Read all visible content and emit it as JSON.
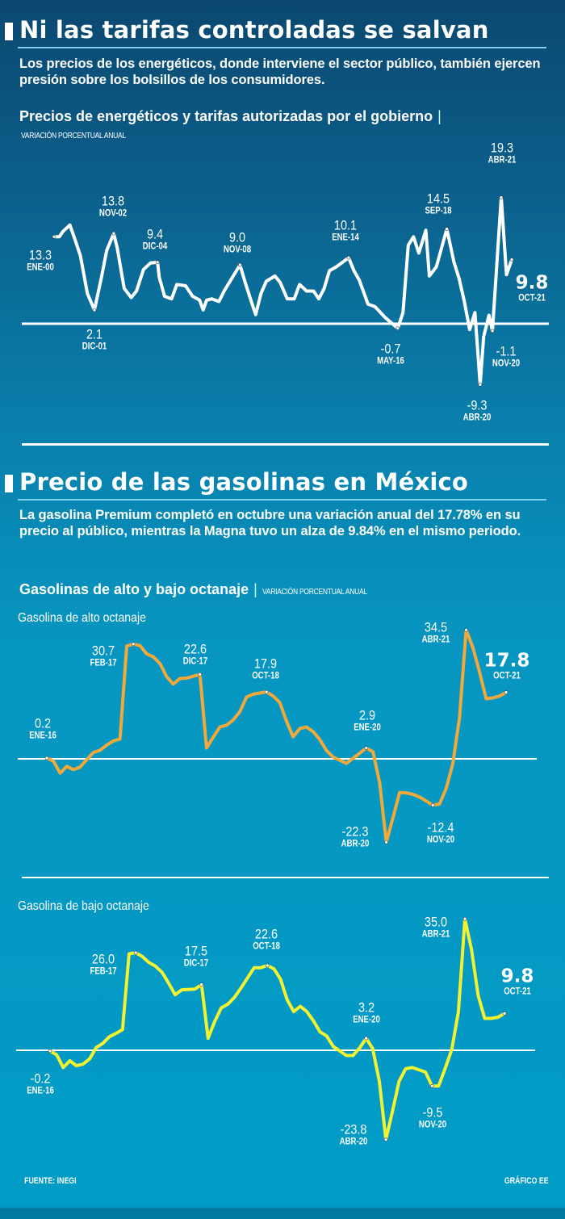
{
  "section1": {
    "title": "Ni las tarifas controladas se salvan",
    "paragraph": "Los precios de los energéticos, donde interviene el sector público, también ejercen presión sobre los bolsillos de los consumidores.",
    "subtitle": "Precios de energéticos y tarifas autorizadas por el gobierno",
    "separator": "|",
    "unit": "VARIACIÓN PORCENTUAL ANUAL"
  },
  "section2": {
    "title": "Precio de las gasolinas en México",
    "paragraph": "La gasolina Premium completó en octubre una variación anual del 17.78% en su precio al público, mientras la Magna tuvo un alza de 9.84% en el mismo periodo.",
    "subtitle": "Gasolinas de alto y bajo octanaje",
    "separator": "|",
    "unit": "VARIACIÓN PORCENTUAL ANUAL"
  },
  "footer": {
    "source": "FUENTE: INEGI",
    "credit": "GRÁFICO EE"
  },
  "colors": {
    "line1": "#ffffff",
    "line2": "#f0a93a",
    "line3": "#f2f232",
    "zero": "#ffffff"
  },
  "chart_data": [
    {
      "type": "line",
      "title": "Precios de energéticos y tarifas autorizadas por el gobierno",
      "ylabel": "VARIACIÓN PORCENTUAL ANUAL",
      "x_unit": "months since ENE-00",
      "x_range": [
        "ENE-00",
        "OCT-21"
      ],
      "grid": false,
      "points": [
        [
          0,
          13.3
        ],
        [
          3,
          13.3
        ],
        [
          5,
          14.1
        ],
        [
          9,
          15.1
        ],
        [
          12,
          12.8
        ],
        [
          15,
          10.4
        ],
        [
          19,
          4.6
        ],
        [
          23,
          2.1
        ],
        [
          27,
          7.1
        ],
        [
          30,
          11.2
        ],
        [
          34,
          13.8
        ],
        [
          36,
          11.6
        ],
        [
          40,
          5.4
        ],
        [
          44,
          4.0
        ],
        [
          47,
          5.0
        ],
        [
          51,
          8.3
        ],
        [
          55,
          9.3
        ],
        [
          59,
          9.4
        ],
        [
          60,
          7.1
        ],
        [
          63,
          4.2
        ],
        [
          67,
          3.8
        ],
        [
          70,
          6.0
        ],
        [
          75,
          5.8
        ],
        [
          79,
          4.2
        ],
        [
          83,
          3.6
        ],
        [
          85,
          2.1
        ],
        [
          87,
          3.6
        ],
        [
          90,
          3.8
        ],
        [
          94,
          3.4
        ],
        [
          97,
          5.0
        ],
        [
          106,
          9.0
        ],
        [
          109,
          6.3
        ],
        [
          112,
          3.8
        ],
        [
          115,
          1.4
        ],
        [
          118,
          4.6
        ],
        [
          121,
          6.5
        ],
        [
          126,
          7.3
        ],
        [
          129,
          6.3
        ],
        [
          133,
          3.8
        ],
        [
          137,
          3.8
        ],
        [
          140,
          6.0
        ],
        [
          144,
          5.0
        ],
        [
          148,
          5.0
        ],
        [
          151,
          3.8
        ],
        [
          154,
          5.4
        ],
        [
          157,
          8.1
        ],
        [
          161,
          8.7
        ],
        [
          168,
          10.1
        ],
        [
          171,
          8.1
        ],
        [
          174,
          6.7
        ],
        [
          179,
          3.0
        ],
        [
          183,
          2.6
        ],
        [
          189,
          0.9
        ],
        [
          196,
          -0.7
        ],
        [
          199,
          1.7
        ],
        [
          202,
          12.0
        ],
        [
          205,
          13.3
        ],
        [
          208,
          10.8
        ],
        [
          212,
          14.3
        ],
        [
          214,
          7.3
        ],
        [
          218,
          8.7
        ],
        [
          224,
          14.5
        ],
        [
          228,
          9.5
        ],
        [
          231,
          6.9
        ],
        [
          234,
          3.4
        ],
        [
          237,
          -0.9
        ],
        [
          240,
          1.7
        ],
        [
          243,
          -9.3
        ],
        [
          245,
          -2.0
        ],
        [
          248,
          1.3
        ],
        [
          250,
          -1.1
        ],
        [
          255,
          19.3
        ],
        [
          258,
          7.5
        ],
        [
          261,
          9.8
        ]
      ],
      "annotations": [
        {
          "value": "13.3",
          "date": "ENE-00",
          "m": 0
        },
        {
          "value": "2.1",
          "date": "DIC-01",
          "m": 23
        },
        {
          "value": "13.8",
          "date": "NOV-02",
          "m": 34
        },
        {
          "value": "9.4",
          "date": "DIC-04",
          "m": 59
        },
        {
          "value": "9.0",
          "date": "NOV-08",
          "m": 106
        },
        {
          "value": "10.1",
          "date": "ENE-14",
          "m": 168
        },
        {
          "value": "-0.7",
          "date": "MAY-16",
          "m": 196
        },
        {
          "value": "14.5",
          "date": "SEP-18",
          "m": 224
        },
        {
          "value": "-9.3",
          "date": "ABR-20",
          "m": 243
        },
        {
          "value": "-1.1",
          "date": "NOV-20",
          "m": 250
        },
        {
          "value": "19.3",
          "date": "ABR-21",
          "m": 255
        },
        {
          "value": "9.8",
          "date": "OCT-21",
          "m": 261
        }
      ]
    },
    {
      "type": "line",
      "title": "Gasolina de alto octanaje",
      "x_unit": "months since ENE-16",
      "x_range": [
        "ENE-16",
        "OCT-21"
      ],
      "grid": false,
      "points": [
        [
          0,
          0.2
        ],
        [
          1,
          -0.6
        ],
        [
          2,
          -3.8
        ],
        [
          3,
          -2.0
        ],
        [
          4,
          -2.9
        ],
        [
          5,
          -2.2
        ],
        [
          6,
          -0.2
        ],
        [
          7,
          1.7
        ],
        [
          8,
          2.3
        ],
        [
          9,
          3.7
        ],
        [
          10,
          4.8
        ],
        [
          11,
          5.3
        ],
        [
          12,
          30.2
        ],
        [
          13,
          30.7
        ],
        [
          14,
          30.3
        ],
        [
          15,
          28.1
        ],
        [
          16,
          27.3
        ],
        [
          17,
          25.5
        ],
        [
          18,
          22.0
        ],
        [
          19,
          20.0
        ],
        [
          20,
          21.5
        ],
        [
          21,
          21.6
        ],
        [
          23,
          22.6
        ],
        [
          24,
          2.9
        ],
        [
          25,
          5.8
        ],
        [
          26,
          8.5
        ],
        [
          27,
          9.0
        ],
        [
          28,
          10.4
        ],
        [
          29,
          12.6
        ],
        [
          30,
          16.5
        ],
        [
          31,
          17.3
        ],
        [
          33,
          17.9
        ],
        [
          34,
          16.8
        ],
        [
          35,
          15.1
        ],
        [
          36,
          10.1
        ],
        [
          37,
          5.9
        ],
        [
          38,
          8.1
        ],
        [
          39,
          8.5
        ],
        [
          40,
          7.3
        ],
        [
          41,
          5.2
        ],
        [
          42,
          2.3
        ],
        [
          43,
          0.5
        ],
        [
          45,
          -1.2
        ],
        [
          46,
          0.1
        ],
        [
          48,
          2.9
        ],
        [
          49,
          1.9
        ],
        [
          50,
          -6.3
        ],
        [
          51,
          -22.3
        ],
        [
          52,
          -15.8
        ],
        [
          53,
          -9.0
        ],
        [
          54,
          -9.1
        ],
        [
          55,
          -9.5
        ],
        [
          56,
          -10.2
        ],
        [
          58,
          -12.4
        ],
        [
          59,
          -12.1
        ],
        [
          60,
          -7.9
        ],
        [
          61,
          -1.3
        ],
        [
          62,
          11.0
        ],
        [
          63,
          34.5
        ],
        [
          64,
          29.8
        ],
        [
          65,
          23.3
        ],
        [
          66,
          16.1
        ],
        [
          67,
          16.3
        ],
        [
          68,
          16.8
        ],
        [
          69,
          17.8
        ]
      ],
      "annotations": [
        {
          "value": "0.2",
          "date": "ENE-16",
          "m": 0
        },
        {
          "value": "30.7",
          "date": "FEB-17",
          "m": 13
        },
        {
          "value": "22.6",
          "date": "DIC-17",
          "m": 23
        },
        {
          "value": "17.9",
          "date": "OCT-18",
          "m": 33
        },
        {
          "value": "2.9",
          "date": "ENE-20",
          "m": 48
        },
        {
          "value": "-22.3",
          "date": "ABR-20",
          "m": 51
        },
        {
          "value": "-12.4",
          "date": "NOV-20",
          "m": 58
        },
        {
          "value": "34.5",
          "date": "ABR-21",
          "m": 63
        },
        {
          "value": "17.8",
          "date": "OCT-21",
          "m": 69
        }
      ]
    },
    {
      "type": "line",
      "title": "Gasolina de bajo octanaje",
      "x_unit": "months since ENE-16",
      "x_range": [
        "ENE-16",
        "OCT-21"
      ],
      "grid": false,
      "points": [
        [
          0,
          -0.2
        ],
        [
          1,
          -1.2
        ],
        [
          2,
          -4.6
        ],
        [
          3,
          -2.8
        ],
        [
          4,
          -4.1
        ],
        [
          5,
          -3.7
        ],
        [
          6,
          -2.3
        ],
        [
          7,
          0.7
        ],
        [
          8,
          1.8
        ],
        [
          9,
          3.6
        ],
        [
          10,
          4.5
        ],
        [
          11,
          5.5
        ],
        [
          12,
          25.7
        ],
        [
          13,
          26.0
        ],
        [
          14,
          25.0
        ],
        [
          15,
          23.4
        ],
        [
          16,
          22.4
        ],
        [
          17,
          20.8
        ],
        [
          18,
          17.9
        ],
        [
          19,
          14.8
        ],
        [
          20,
          16.1
        ],
        [
          22,
          16.3
        ],
        [
          23,
          17.5
        ],
        [
          24,
          3.2
        ],
        [
          25,
          7.7
        ],
        [
          26,
          11.3
        ],
        [
          27,
          12.3
        ],
        [
          28,
          14.1
        ],
        [
          29,
          16.6
        ],
        [
          31,
          22.0
        ],
        [
          32,
          22.0
        ],
        [
          33,
          22.6
        ],
        [
          34,
          21.7
        ],
        [
          35,
          18.9
        ],
        [
          36,
          13.5
        ],
        [
          37,
          10.3
        ],
        [
          38,
          11.7
        ],
        [
          39,
          10.3
        ],
        [
          40,
          7.8
        ],
        [
          41,
          4.9
        ],
        [
          42,
          3.8
        ],
        [
          43,
          1.0
        ],
        [
          45,
          -1.4
        ],
        [
          46,
          -1.4
        ],
        [
          47,
          0.6
        ],
        [
          48,
          3.2
        ],
        [
          49,
          0.4
        ],
        [
          50,
          -8.3
        ],
        [
          51,
          -23.8
        ],
        [
          52,
          -16.2
        ],
        [
          53,
          -8.3
        ],
        [
          54,
          -4.9
        ],
        [
          55,
          -4.6
        ],
        [
          57,
          -5.8
        ],
        [
          58,
          -9.5
        ],
        [
          59,
          -9.5
        ],
        [
          60,
          -4.8
        ],
        [
          61,
          0.2
        ],
        [
          62,
          10.2
        ],
        [
          63,
          35.0
        ],
        [
          64,
          26.8
        ],
        [
          65,
          14.6
        ],
        [
          66,
          8.5
        ],
        [
          67,
          8.5
        ],
        [
          68,
          8.8
        ],
        [
          69,
          9.8
        ]
      ],
      "annotations": [
        {
          "value": "-0.2",
          "date": "ENE-16",
          "m": 0
        },
        {
          "value": "26.0",
          "date": "FEB-17",
          "m": 13
        },
        {
          "value": "17.5",
          "date": "DIC-17",
          "m": 23
        },
        {
          "value": "22.6",
          "date": "OCT-18",
          "m": 33
        },
        {
          "value": "3.2",
          "date": "ENE-20",
          "m": 48
        },
        {
          "value": "-23.8",
          "date": "ABR-20",
          "m": 51
        },
        {
          "value": "-9.5",
          "date": "NOV-20",
          "m": 58
        },
        {
          "value": "35.0",
          "date": "ABR-21",
          "m": 63
        },
        {
          "value": "9.8",
          "date": "OCT-21",
          "m": 69
        }
      ]
    }
  ]
}
